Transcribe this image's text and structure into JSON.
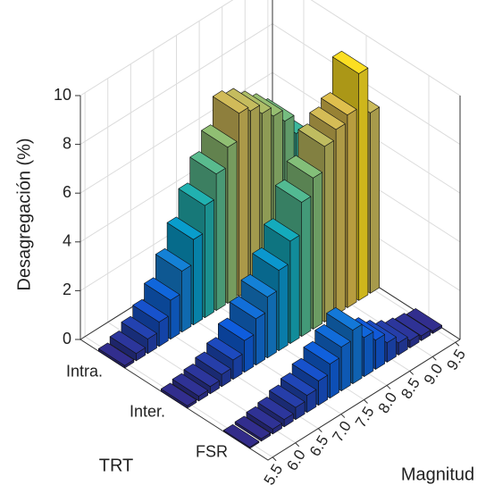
{
  "chart_data": {
    "type": "bar3",
    "xlabel": "Magnitud",
    "ylabel": "TRT",
    "zlabel": "Desagregación (%)",
    "x": [
      5.5,
      5.75,
      6.0,
      6.25,
      6.5,
      6.75,
      7.0,
      7.25,
      7.5,
      7.75,
      8.0,
      8.25,
      8.5,
      8.75,
      9.0,
      9.25,
      9.5
    ],
    "series": [
      {
        "name": "Intra.",
        "values": [
          0.1,
          0.3,
          0.6,
          1.0,
          1.6,
          2.5,
          3.5,
          4.6,
          5.6,
          6.4,
          7.5,
          7.3,
          6.9,
          6.5,
          6.0,
          5.2,
          4.3
        ]
      },
      {
        "name": "Inter.",
        "values": [
          0.1,
          0.2,
          0.3,
          0.5,
          0.8,
          1.3,
          1.9,
          2.5,
          3.3,
          4.2,
          5.5,
          6.2,
          7.2,
          7.6,
          7.9,
          9.3,
          7.4
        ]
      },
      {
        "name": "FSR",
        "values": [
          0.05,
          0.1,
          0.2,
          0.3,
          0.5,
          0.7,
          1.0,
          1.4,
          1.8,
          2.2,
          1.6,
          1.2,
          0.8,
          0.5,
          0.3,
          0.2,
          0.1
        ]
      }
    ],
    "xlim": [
      5.4,
      9.6
    ],
    "xticks": [
      5.5,
      {
        "value": 6,
        "label": "6.0"
      },
      6.5,
      {
        "value": 7,
        "label": "7.0"
      },
      7.5,
      {
        "value": 8,
        "label": "8.0"
      },
      8.5,
      {
        "value": 9,
        "label": "9.0"
      },
      9.5
    ],
    "zlim": [
      0,
      10
    ],
    "zticks": [
      0,
      2,
      4,
      6,
      8,
      10
    ],
    "grid": true,
    "colormap": [
      "#352a87",
      "#0f5cdd",
      "#1481d6",
      "#06a4ca",
      "#2eb7a4",
      "#87bf77",
      "#d1bb59",
      "#fec832",
      "#f9fb0e"
    ]
  }
}
